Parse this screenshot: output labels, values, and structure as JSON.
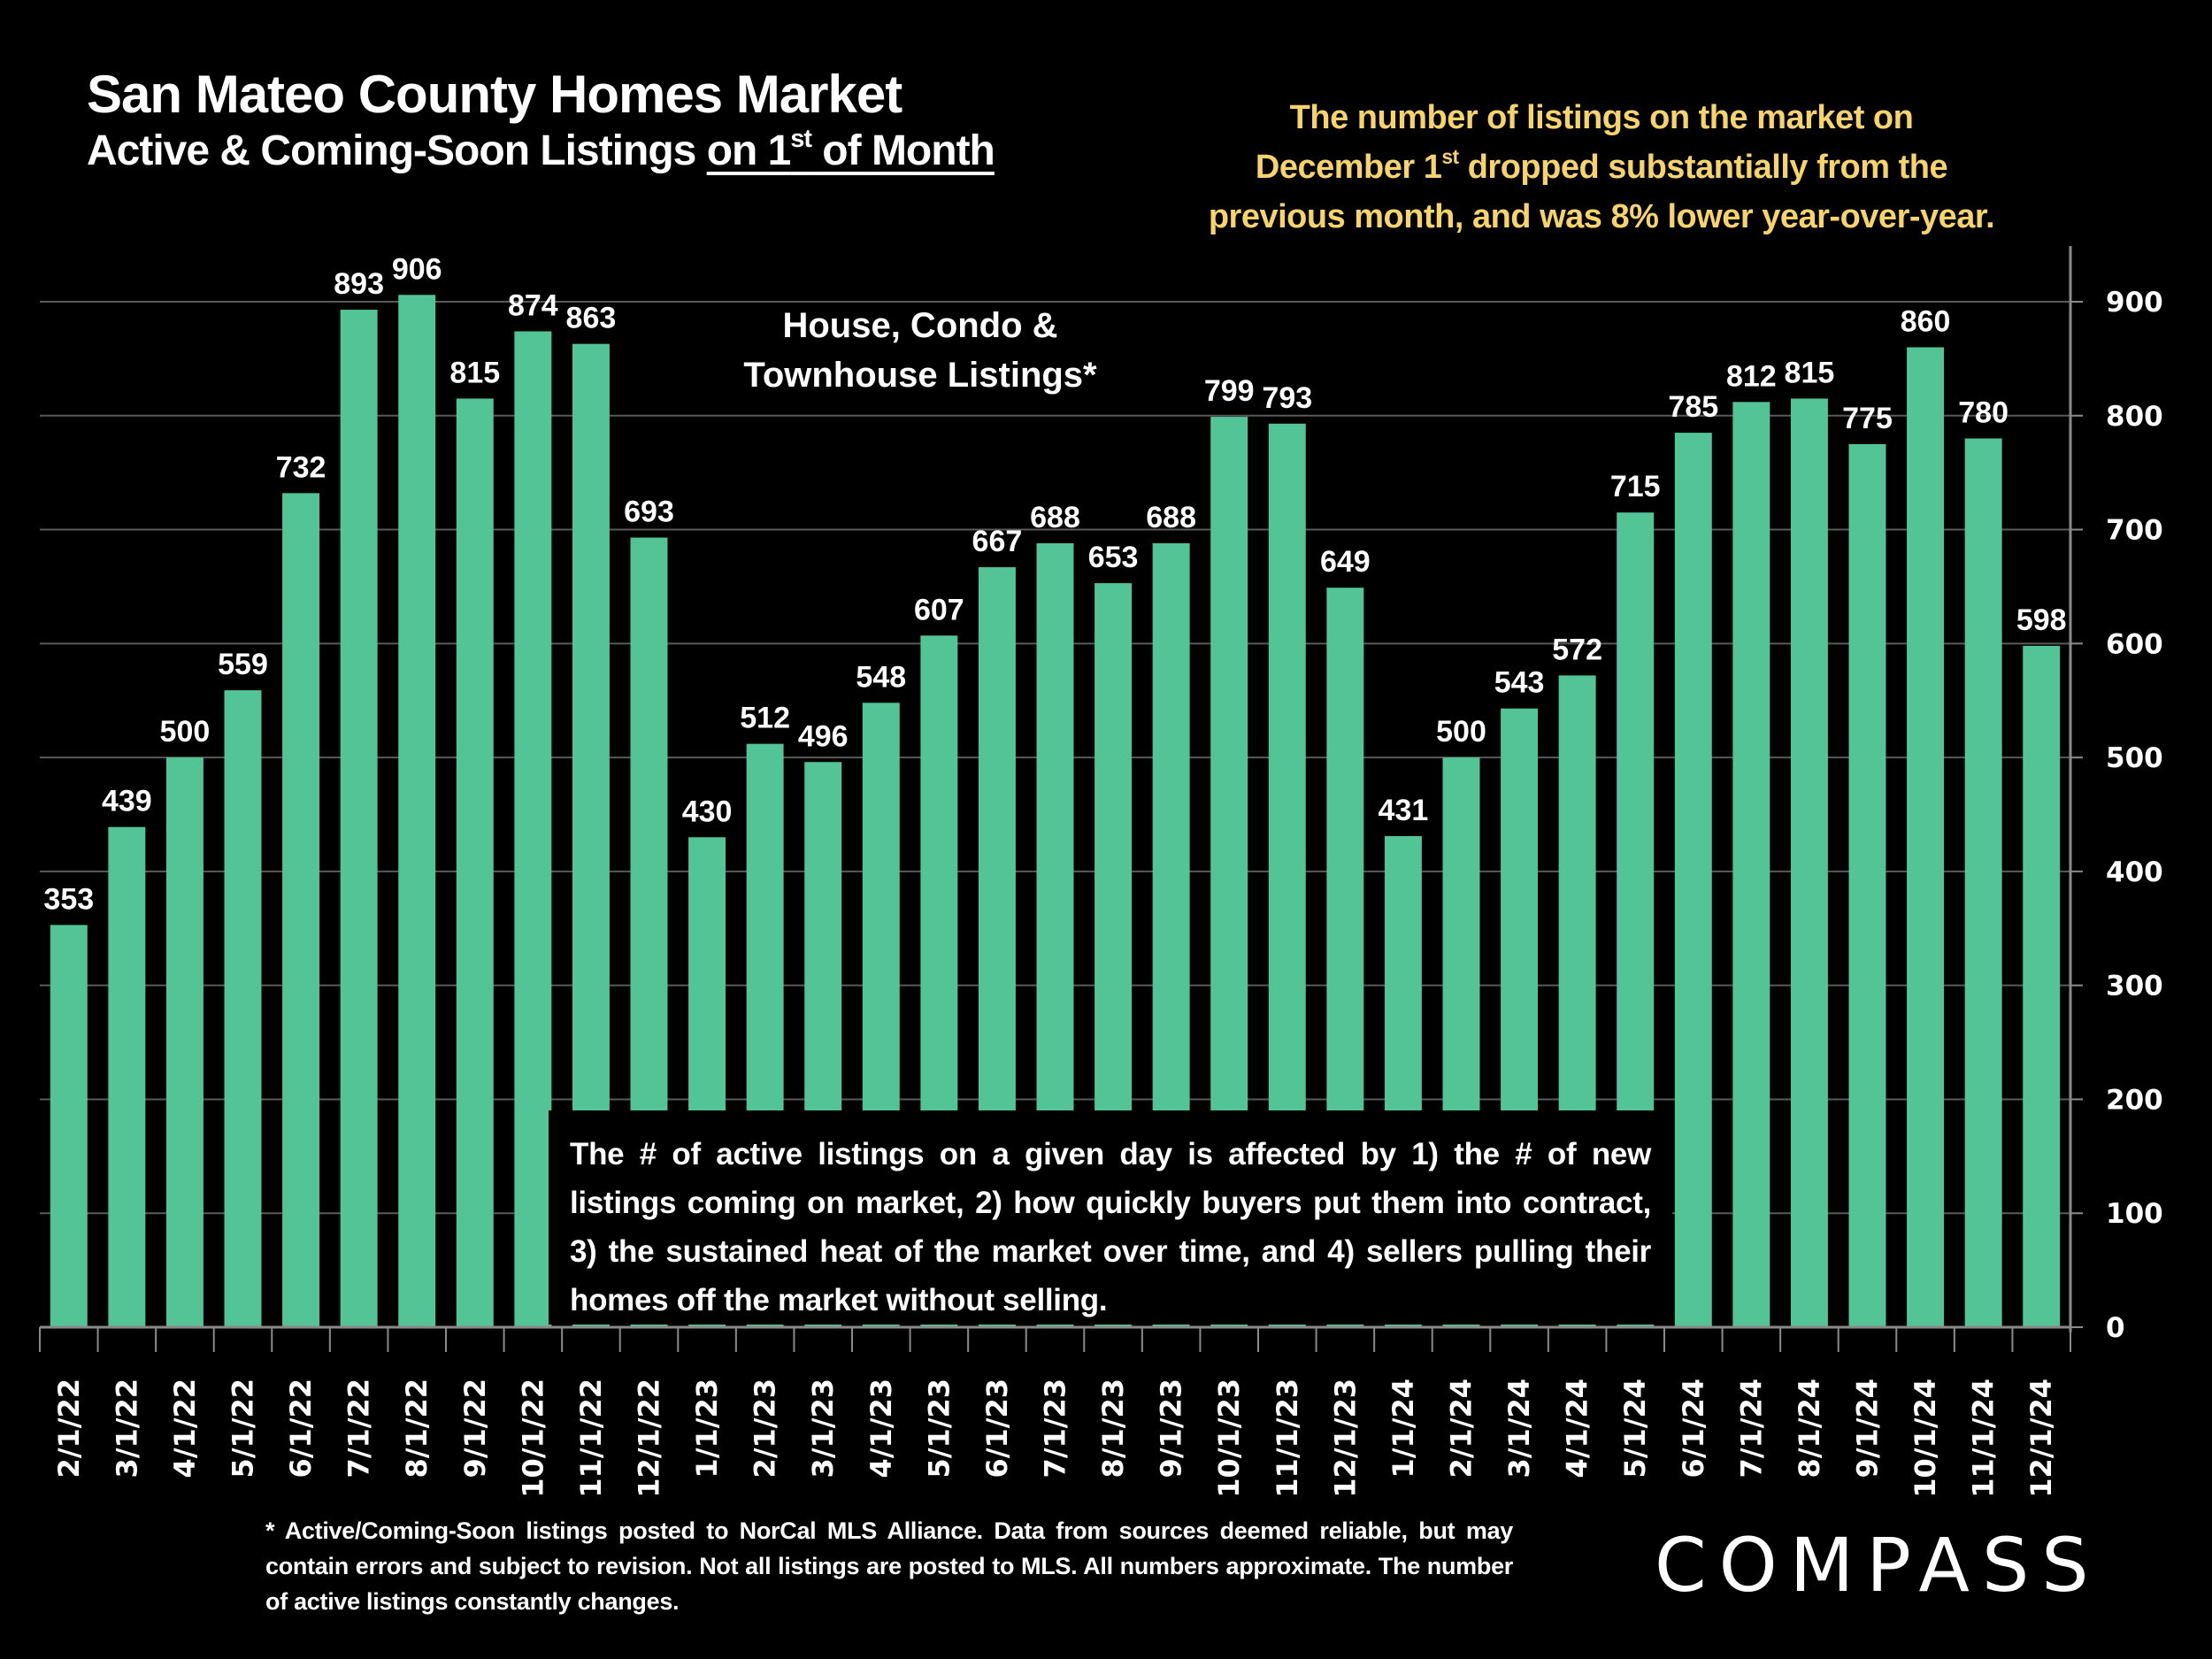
{
  "header": {
    "title": "San Mateo County Homes Market",
    "subtitle_prefix": "Active & Coming-Soon Listings ",
    "subtitle_underlined_a": "on 1",
    "subtitle_sup": "st",
    "subtitle_underlined_b": " of Month"
  },
  "callout": {
    "line1": "The number of listings on the market on",
    "line2a": "December 1",
    "line2_sup": "st",
    "line2b": " dropped substantially from the",
    "line3": "previous month, and was 8% lower year-over-year.",
    "color": "#f6d36b"
  },
  "series_label": {
    "line1": "House, Condo &",
    "line2": "Townhouse Listings*"
  },
  "note": "The # of active listings on a given day is affected by 1) the # of new listings coming on market, 2) how quickly buyers put them into contract, 3) the sustained heat of the market over time, and 4) sellers pulling their homes off the market without selling.",
  "footnote": "* Active/Coming-Soon listings posted to NorCal MLS Alliance.  Data from sources deemed reliable, but may contain errors and subject to revision.  Not all listings are posted to MLS. All numbers approximate. The number of active listings constantly changes.",
  "logo": "COMPASS",
  "chart_data": {
    "type": "bar",
    "title": "San Mateo County Homes Market",
    "subtitle": "Active & Coming-Soon Listings on 1st of Month",
    "xlabel": "",
    "ylabel": "",
    "ylim": [
      0,
      950
    ],
    "yticks": [
      0,
      100,
      200,
      300,
      400,
      500,
      600,
      700,
      800,
      900
    ],
    "y_axis_side": "right",
    "grid": true,
    "bar_color": "#52c496",
    "categories": [
      "2/1/22",
      "3/1/22",
      "4/1/22",
      "5/1/22",
      "6/1/22",
      "7/1/22",
      "8/1/22",
      "9/1/22",
      "10/1/22",
      "11/1/22",
      "12/1/22",
      "1/1/23",
      "2/1/23",
      "3/1/23",
      "4/1/23",
      "5/1/23",
      "6/1/23",
      "7/1/23",
      "8/1/23",
      "9/1/23",
      "10/1/23",
      "11/1/23",
      "12/1/23",
      "1/1/24",
      "2/1/24",
      "3/1/24",
      "4/1/24",
      "5/1/24",
      "6/1/24",
      "7/1/24",
      "8/1/24",
      "9/1/24",
      "10/1/24",
      "11/1/24",
      "12/1/24"
    ],
    "values": [
      353,
      439,
      500,
      559,
      732,
      893,
      906,
      815,
      874,
      863,
      693,
      430,
      512,
      496,
      548,
      607,
      667,
      688,
      653,
      688,
      799,
      793,
      649,
      431,
      500,
      543,
      572,
      715,
      785,
      812,
      815,
      775,
      860,
      780,
      598
    ],
    "series_name": "House, Condo & Townhouse Listings*"
  }
}
